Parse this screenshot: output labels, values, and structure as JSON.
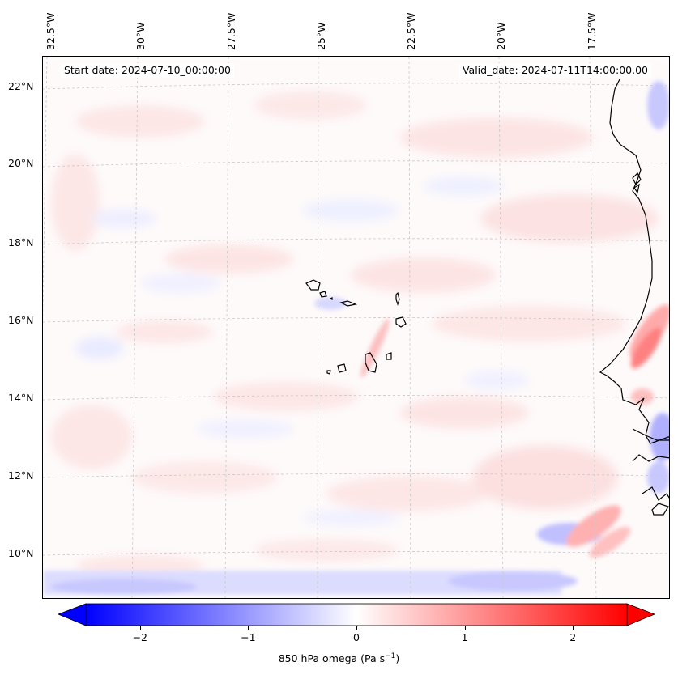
{
  "header": {
    "start_date": "Start date: 2024-07-10_00:00:00",
    "valid_date": "Valid_date: 2024-07-11T14:00:00.00"
  },
  "axes": {
    "lon_labels": [
      "32.5°W",
      "30°W",
      "27.5°W",
      "25°W",
      "22.5°W",
      "20°W",
      "17.5°W"
    ],
    "lat_labels": [
      "22°N",
      "20°N",
      "18°N",
      "16°N",
      "14°N",
      "12°N",
      "10°N"
    ]
  },
  "colorbar": {
    "title_prefix": "850 hPa omega (Pa s",
    "title_exp": "−1",
    "title_suffix": ")",
    "ticks": [
      "−2",
      "−1",
      "0",
      "1",
      "2"
    ],
    "tick_values": [
      -2,
      -1,
      0,
      1,
      2
    ],
    "range": [
      -2.5,
      2.5
    ],
    "colormap": "bwr",
    "neg_color": "#0000ff",
    "zero_color": "#ffffff",
    "pos_color": "#ff0000"
  },
  "colors": {
    "gridline": "#c8c8c8",
    "coastline": "#000000"
  }
}
